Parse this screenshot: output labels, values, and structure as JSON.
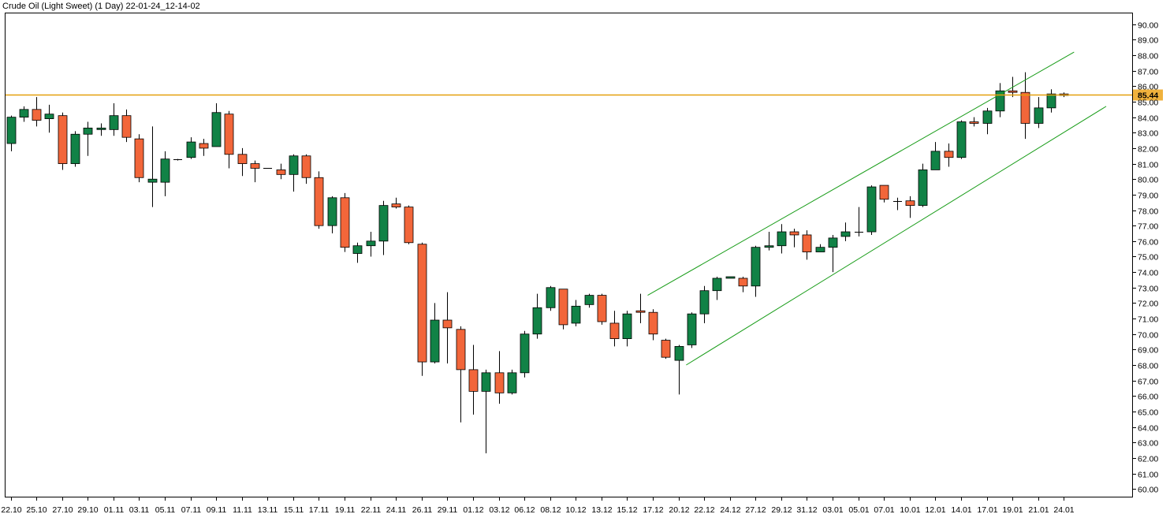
{
  "chart_data": {
    "type": "candlestick",
    "title": "Crude Oil (Light Sweet) (1 Day) 22-01-24_12-14-02",
    "y_range": [
      59.5,
      90.7
    ],
    "y_ticks": [
      "60.00",
      "61.00",
      "62.00",
      "63.00",
      "64.00",
      "65.00",
      "66.00",
      "67.00",
      "68.00",
      "69.00",
      "70.00",
      "71.00",
      "72.00",
      "73.00",
      "74.00",
      "75.00",
      "76.00",
      "77.00",
      "78.00",
      "79.00",
      "80.00",
      "81.00",
      "82.00",
      "83.00",
      "84.00",
      "85.00",
      "86.00",
      "87.00",
      "88.00",
      "89.00",
      "90.00"
    ],
    "x_labels": [
      {
        "i": 0,
        "t": "22.10"
      },
      {
        "i": 2,
        "t": "25.10"
      },
      {
        "i": 4,
        "t": "27.10"
      },
      {
        "i": 6,
        "t": "29.10"
      },
      {
        "i": 8,
        "t": "01.11"
      },
      {
        "i": 10,
        "t": "03.11"
      },
      {
        "i": 12,
        "t": "05.11"
      },
      {
        "i": 14,
        "t": "07.11"
      },
      {
        "i": 16,
        "t": "09.11"
      },
      {
        "i": 18,
        "t": "11.11"
      },
      {
        "i": 20,
        "t": "13.11"
      },
      {
        "i": 22,
        "t": "15.11"
      },
      {
        "i": 24,
        "t": "17.11"
      },
      {
        "i": 26,
        "t": "19.11"
      },
      {
        "i": 28,
        "t": "22.11"
      },
      {
        "i": 30,
        "t": "24.11"
      },
      {
        "i": 32,
        "t": "26.11"
      },
      {
        "i": 34,
        "t": "29.11"
      },
      {
        "i": 36,
        "t": "01.12"
      },
      {
        "i": 38,
        "t": "03.12"
      },
      {
        "i": 40,
        "t": "06.12"
      },
      {
        "i": 42,
        "t": "08.12"
      },
      {
        "i": 44,
        "t": "10.12"
      },
      {
        "i": 46,
        "t": "13.12"
      },
      {
        "i": 48,
        "t": "15.12"
      },
      {
        "i": 50,
        "t": "17.12"
      },
      {
        "i": 52,
        "t": "20.12"
      },
      {
        "i": 54,
        "t": "22.12"
      },
      {
        "i": 56,
        "t": "24.12"
      },
      {
        "i": 58,
        "t": "27.12"
      },
      {
        "i": 60,
        "t": "29.12"
      },
      {
        "i": 62,
        "t": "31.12"
      },
      {
        "i": 64,
        "t": "03.01"
      },
      {
        "i": 66,
        "t": "05.01"
      },
      {
        "i": 68,
        "t": "07.01"
      },
      {
        "i": 70,
        "t": "10.01"
      },
      {
        "i": 72,
        "t": "12.01"
      },
      {
        "i": 74,
        "t": "14.01"
      },
      {
        "i": 76,
        "t": "17.01"
      },
      {
        "i": 78,
        "t": "19.01"
      },
      {
        "i": 80,
        "t": "21.01"
      },
      {
        "i": 82,
        "t": "24.01"
      }
    ],
    "candles": [
      [
        82.3,
        84.0,
        81.8,
        84.1
      ],
      [
        84.0,
        84.5,
        83.7,
        84.7
      ],
      [
        84.5,
        83.8,
        83.4,
        85.3
      ],
      [
        83.9,
        84.2,
        83.0,
        84.8
      ],
      [
        84.1,
        81.0,
        80.6,
        84.3
      ],
      [
        81.0,
        82.9,
        80.8,
        83.1
      ],
      [
        82.9,
        83.3,
        81.5,
        83.7
      ],
      [
        83.2,
        83.3,
        82.8,
        83.6
      ],
      [
        83.2,
        84.1,
        82.8,
        84.9
      ],
      [
        84.1,
        82.7,
        82.4,
        84.5
      ],
      [
        82.6,
        80.1,
        79.8,
        82.9
      ],
      [
        79.8,
        80.0,
        78.2,
        83.4
      ],
      [
        79.8,
        81.3,
        78.9,
        81.8
      ],
      [
        81.3,
        81.3,
        81.2,
        81.3
      ],
      [
        81.4,
        82.4,
        81.3,
        82.7
      ],
      [
        82.3,
        82.0,
        81.5,
        82.6
      ],
      [
        82.1,
        84.3,
        82.1,
        84.9
      ],
      [
        84.2,
        81.6,
        80.7,
        84.4
      ],
      [
        81.6,
        81.0,
        80.2,
        82.0
      ],
      [
        81.0,
        80.7,
        79.8,
        81.2
      ],
      [
        80.7,
        80.7,
        80.7,
        80.7
      ],
      [
        80.6,
        80.3,
        80.0,
        81.0
      ],
      [
        80.3,
        81.5,
        79.2,
        81.6
      ],
      [
        81.5,
        80.1,
        79.7,
        81.6
      ],
      [
        80.1,
        77.0,
        76.8,
        80.5
      ],
      [
        77.0,
        78.8,
        76.5,
        78.9
      ],
      [
        78.8,
        75.6,
        75.3,
        79.1
      ],
      [
        75.2,
        75.7,
        74.6,
        75.9
      ],
      [
        75.7,
        76.0,
        75.0,
        76.6
      ],
      [
        76.0,
        78.3,
        75.1,
        78.6
      ],
      [
        78.4,
        78.2,
        78.1,
        78.8
      ],
      [
        78.2,
        75.9,
        75.8,
        78.3
      ],
      [
        75.8,
        68.2,
        67.3,
        75.9
      ],
      [
        68.2,
        70.9,
        68.1,
        72.0
      ],
      [
        70.9,
        70.4,
        68.1,
        72.7
      ],
      [
        70.3,
        67.7,
        64.3,
        70.5
      ],
      [
        67.7,
        66.3,
        64.8,
        69.3
      ],
      [
        66.3,
        67.5,
        62.3,
        67.7
      ],
      [
        67.5,
        66.2,
        65.5,
        68.9
      ],
      [
        66.2,
        67.5,
        66.1,
        67.7
      ],
      [
        67.5,
        70.0,
        67.2,
        70.2
      ],
      [
        70.0,
        71.7,
        69.7,
        72.6
      ],
      [
        71.7,
        73.0,
        71.5,
        73.1
      ],
      [
        72.9,
        70.6,
        70.3,
        72.9
      ],
      [
        70.7,
        71.8,
        70.5,
        72.2
      ],
      [
        71.9,
        72.5,
        71.7,
        72.6
      ],
      [
        72.5,
        70.8,
        70.6,
        72.6
      ],
      [
        70.7,
        69.7,
        69.2,
        71.5
      ],
      [
        69.7,
        71.3,
        69.2,
        71.5
      ],
      [
        71.5,
        71.4,
        70.7,
        72.6
      ],
      [
        71.4,
        70.0,
        69.6,
        71.6
      ],
      [
        69.6,
        68.5,
        68.4,
        69.7
      ],
      [
        68.3,
        69.2,
        66.1,
        69.3
      ],
      [
        69.3,
        71.3,
        69.1,
        71.4
      ],
      [
        71.3,
        72.8,
        70.7,
        73.1
      ],
      [
        72.8,
        73.6,
        72.2,
        73.7
      ],
      [
        73.6,
        73.7,
        73.6,
        73.7
      ],
      [
        73.6,
        73.1,
        72.7,
        73.7
      ],
      [
        73.1,
        75.6,
        72.4,
        75.7
      ],
      [
        75.6,
        75.7,
        75.4,
        76.6
      ],
      [
        75.7,
        76.6,
        75.2,
        77.1
      ],
      [
        76.6,
        76.4,
        75.6,
        76.8
      ],
      [
        76.4,
        75.3,
        74.8,
        76.7
      ],
      [
        75.3,
        75.6,
        75.3,
        75.8
      ],
      [
        75.6,
        76.2,
        74.0,
        76.4
      ],
      [
        76.3,
        76.6,
        76.0,
        77.2
      ],
      [
        76.6,
        76.6,
        76.3,
        78.2
      ],
      [
        76.6,
        79.5,
        76.4,
        79.6
      ],
      [
        79.6,
        78.7,
        78.5,
        79.6
      ],
      [
        78.6,
        78.6,
        78.0,
        78.8
      ],
      [
        78.6,
        78.3,
        77.5,
        78.9
      ],
      [
        78.3,
        80.6,
        78.2,
        81.0
      ],
      [
        80.6,
        81.8,
        80.6,
        82.4
      ],
      [
        81.8,
        81.4,
        80.8,
        82.3
      ],
      [
        81.4,
        83.7,
        81.3,
        83.8
      ],
      [
        83.7,
        83.6,
        83.4,
        84.0
      ],
      [
        83.6,
        84.4,
        82.9,
        84.6
      ],
      [
        84.4,
        85.7,
        84.0,
        86.2
      ],
      [
        85.7,
        85.6,
        85.3,
        86.6
      ],
      [
        85.6,
        83.6,
        82.6,
        86.9
      ],
      [
        83.6,
        84.6,
        83.3,
        85.3
      ],
      [
        84.6,
        85.5,
        84.3,
        85.8
      ],
      [
        85.5,
        85.4,
        85.3,
        85.6
      ]
    ],
    "last_price": "85.44",
    "channel": {
      "upper": [
        {
          "i": 49.6,
          "y": 72.5
        },
        {
          "i": 82.8,
          "y": 88.2
        }
      ],
      "lower": [
        {
          "i": 52.6,
          "y": 68.0
        },
        {
          "i": 85.3,
          "y": 84.7
        }
      ]
    },
    "colors": {
      "up": "#118246",
      "down": "#f2663a",
      "wick": "#000000",
      "price_line": "#e5a00d",
      "price_badge": "#f0b23c",
      "channel": "#189c18",
      "grid": "#dddddd"
    }
  }
}
